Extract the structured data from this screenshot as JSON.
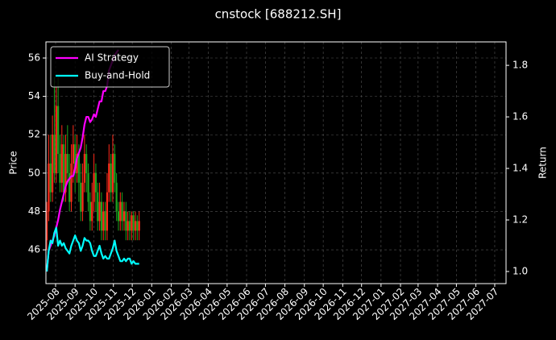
{
  "chart_data": {
    "type": "candlestick",
    "title": "cnstock [688212.SH]",
    "ylabel": "Price",
    "y2label": "Return",
    "up_color": "#ff2a1a",
    "down_color": "#1fa31f",
    "x": [
      -4,
      -1,
      2,
      5,
      8,
      11,
      14,
      17,
      20,
      23,
      26,
      29,
      32,
      35,
      38,
      41,
      44,
      47,
      50,
      53,
      56,
      59,
      62,
      65,
      68,
      71,
      74,
      77,
      80,
      83,
      86,
      89,
      92,
      95,
      98,
      101,
      104,
      107,
      110,
      113,
      116,
      119,
      122,
      125,
      128,
      131,
      134,
      137,
      140,
      143
    ],
    "open": [
      46.5,
      48,
      50.5,
      49,
      52,
      50,
      53.5,
      51,
      49.5,
      51.5,
      49,
      51,
      50,
      48.5,
      50.5,
      51.5,
      50,
      51,
      49.5,
      48,
      49.5,
      51,
      50,
      48.5,
      47.5,
      48.5,
      50,
      49,
      47.5,
      48.5,
      47,
      48,
      47,
      49,
      50.5,
      49,
      51,
      49.5,
      48,
      47.5,
      48.5,
      47.5,
      48,
      47,
      47.5,
      47,
      47.8,
      47,
      47.5,
      47
    ],
    "close": [
      48,
      50.5,
      49,
      52,
      50,
      53.5,
      51,
      49.5,
      51.5,
      49,
      51,
      50,
      48.5,
      50.5,
      51.5,
      50,
      51,
      49.5,
      48,
      49.5,
      51,
      50,
      48.5,
      47.5,
      48.5,
      50,
      49,
      47.5,
      48.5,
      47,
      48,
      47,
      49,
      50.5,
      49,
      51,
      49.5,
      48,
      47.5,
      48.5,
      47.5,
      48,
      47,
      47.5,
      47,
      47.8,
      47,
      47.5,
      47,
      47.5
    ],
    "high": [
      48.5,
      52,
      52,
      53,
      55,
      54.5,
      55,
      52,
      52.5,
      52,
      52,
      52.5,
      51,
      51.5,
      52.5,
      52,
      52,
      51.5,
      50.5,
      50.5,
      52,
      51.5,
      50.5,
      49,
      49.5,
      51,
      50.5,
      49.5,
      49.5,
      49,
      48.5,
      48.5,
      50,
      51.5,
      51,
      52,
      51.5,
      50,
      48.5,
      49,
      49,
      48.5,
      48.5,
      48,
      48,
      48,
      48,
      48,
      47.8,
      48
    ],
    "low": [
      46,
      47.5,
      48.5,
      48.5,
      49.5,
      49.5,
      50,
      49,
      49,
      48.5,
      48.5,
      49.5,
      48,
      48,
      49.5,
      49,
      49.5,
      48.5,
      47.5,
      47.5,
      49,
      49,
      48,
      47,
      47,
      48,
      48,
      47,
      47,
      46.5,
      46.5,
      46.5,
      46.5,
      48.5,
      48.5,
      48.5,
      49,
      47.5,
      47,
      47,
      47,
      47,
      46.5,
      46.5,
      46.5,
      46.5,
      46.5,
      46.5,
      46.5,
      46.5
    ],
    "series": [
      {
        "name": "AI Strategy",
        "color": "#ff00ff",
        "axis": "y2",
        "values": [
          1.0,
          1.08,
          1.1,
          1.12,
          1.14,
          1.17,
          1.2,
          1.24,
          1.27,
          1.3,
          1.33,
          1.35,
          1.36,
          1.37,
          1.37,
          1.4,
          1.44,
          1.46,
          1.48,
          1.52,
          1.57,
          1.6,
          1.6,
          1.58,
          1.59,
          1.61,
          1.6,
          1.63,
          1.66,
          1.66,
          1.7,
          1.7,
          1.72,
          1.78,
          1.8,
          1.82,
          1.84,
          1.85,
          1.86,
          null,
          null,
          null,
          null,
          null,
          null,
          null,
          null,
          null,
          null,
          null
        ]
      },
      {
        "name": "Buy-and-Hold",
        "color": "#00ffff",
        "axis": "y2",
        "values": [
          1.0,
          1.08,
          1.12,
          1.11,
          1.15,
          1.17,
          1.1,
          1.12,
          1.1,
          1.11,
          1.09,
          1.08,
          1.07,
          1.1,
          1.12,
          1.14,
          1.12,
          1.11,
          1.08,
          1.1,
          1.13,
          1.12,
          1.12,
          1.11,
          1.08,
          1.06,
          1.06,
          1.08,
          1.1,
          1.07,
          1.05,
          1.06,
          1.05,
          1.05,
          1.07,
          1.09,
          1.12,
          1.08,
          1.06,
          1.04,
          1.04,
          1.05,
          1.04,
          1.05,
          1.05,
          1.03,
          1.04,
          1.03,
          1.03,
          1.03
        ]
      }
    ],
    "xlim": [
      -5.4,
      727
    ],
    "xticks": [
      {
        "value": 10,
        "label": "2025-08"
      },
      {
        "value": 41,
        "label": "2025-09"
      },
      {
        "value": 71,
        "label": "2025-10"
      },
      {
        "value": 102,
        "label": "2025-11"
      },
      {
        "value": 132,
        "label": "2025-12"
      },
      {
        "value": 163,
        "label": "2026-01"
      },
      {
        "value": 194,
        "label": "2026-02"
      },
      {
        "value": 222,
        "label": "2026-03"
      },
      {
        "value": 253,
        "label": "2026-04"
      },
      {
        "value": 283,
        "label": "2026-05"
      },
      {
        "value": 314,
        "label": "2026-06"
      },
      {
        "value": 344,
        "label": "2026-07"
      },
      {
        "value": 375,
        "label": "2026-08"
      },
      {
        "value": 406,
        "label": "2026-09"
      },
      {
        "value": 436,
        "label": "2026-10"
      },
      {
        "value": 467,
        "label": "2026-11"
      },
      {
        "value": 497,
        "label": "2026-12"
      },
      {
        "value": 528,
        "label": "2027-01"
      },
      {
        "value": 559,
        "label": "2027-02"
      },
      {
        "value": 587,
        "label": "2027-03"
      },
      {
        "value": 618,
        "label": "2027-04"
      },
      {
        "value": 648,
        "label": "2027-05"
      },
      {
        "value": 679,
        "label": "2027-06"
      },
      {
        "value": 709,
        "label": "2027-07"
      }
    ],
    "ylim": [
      44.24,
      56.84
    ],
    "yticks": [
      46,
      48,
      50,
      52,
      54,
      56
    ],
    "y2lim": [
      0.953,
      1.891
    ],
    "y2ticks": [
      {
        "value": 1,
        "label": "1.0"
      },
      1.2,
      1.4,
      1.6,
      1.8
    ],
    "grid": true,
    "legend": "upper left"
  }
}
